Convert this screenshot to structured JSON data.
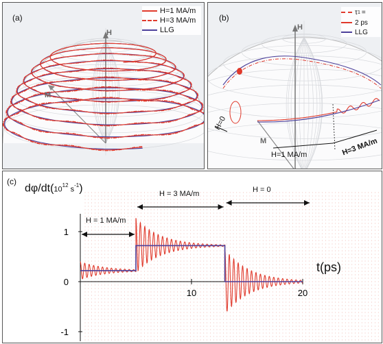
{
  "panel_a": {
    "label": "(a)",
    "axis_h": "H",
    "axis_m": "M",
    "legend": [
      {
        "label": "H=1 MA/m",
        "color": "#e0392b",
        "style": "solid"
      },
      {
        "label": "H=3 MA/m",
        "color": "#e0392b",
        "style": "dashdot"
      },
      {
        "label": "LLG",
        "color": "#4b3f9a",
        "style": "solid"
      }
    ]
  },
  "panel_b": {
    "label": "(b)",
    "axis_h": "H",
    "axis_m": "M",
    "legend_tau": "τ",
    "legend_tau_sub": "1",
    "legend_tau_eq": "=",
    "legend_ps": "2 ps",
    "legend_llg": "LLG",
    "annot_h0": "H=0",
    "annot_h1": "H=1 MA/m",
    "annot_h3": "H=3 MA/m",
    "colors": {
      "red": "#e0392b",
      "llg": "#4b3f9a"
    }
  },
  "panel_c": {
    "label": "(c)",
    "ylabel_main": "dφ/dt(",
    "ylabel_exp": "10",
    "ylabel_sup": "12",
    "ylabel_unit": " s",
    "ylabel_sup2": "-1",
    "ylabel_close": ")",
    "xlabel": "t(ps)",
    "region_labels": [
      "H = 1 MA/m",
      "H = 3 MA/m",
      "H = 0"
    ],
    "chart_data": {
      "type": "line",
      "xlabel": "t(ps)",
      "ylabel": "dφ/dt(10^12 s^-1)",
      "xlim": [
        0,
        20
      ],
      "ylim": [
        -1.2,
        1.3
      ],
      "x_ticks": [
        10,
        20
      ],
      "y_ticks": [
        1,
        0,
        -1
      ],
      "series": [
        {
          "name": "LLG",
          "x": [
            0,
            5,
            5,
            13,
            13,
            20
          ],
          "values": [
            0.22,
            0.22,
            0.72,
            0.72,
            0,
            0
          ]
        },
        {
          "name": "τ1 = 2 ps",
          "oscillation": [
            {
              "t_start": 0,
              "t_end": 5,
              "mean": 0.22,
              "amp0": 0.18,
              "period_ps": 0.4
            },
            {
              "t_start": 5,
              "t_end": 13,
              "mean": 0.72,
              "amp0": 0.55,
              "period_ps": 0.4
            },
            {
              "t_start": 13,
              "t_end": 20,
              "mean": 0.0,
              "amp0": 0.65,
              "period_ps": 0.4
            }
          ]
        }
      ],
      "colors": {
        "llg": "#4b3f9a",
        "oscillating": "#e0392b"
      }
    }
  }
}
